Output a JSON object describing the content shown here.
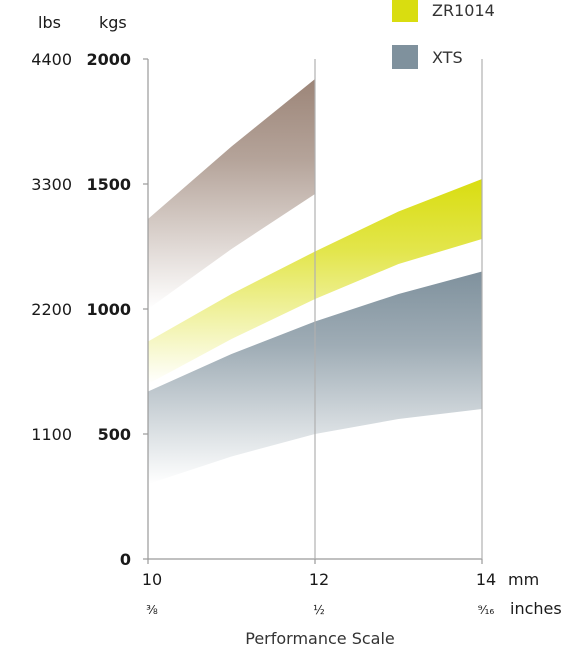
{
  "chart_data": {
    "type": "area",
    "xlabel": "Performance Scale",
    "x_units": {
      "primary": "mm",
      "secondary": "inches"
    },
    "x": [
      10,
      12,
      14
    ],
    "x_tick_labels": [
      "10",
      "12",
      "14"
    ],
    "x_inch_labels": [
      "⅜",
      "½",
      "⁹⁄₁₆"
    ],
    "xlim": [
      10,
      14
    ],
    "y_units": {
      "left": "lbs",
      "right": "kgs"
    },
    "ylim": [
      0,
      2000
    ],
    "y_ticks_kgs": [
      0,
      500,
      1000,
      1500,
      2000
    ],
    "y_tick_labels_kgs": [
      "0",
      "500",
      "1000",
      "1500",
      "2000"
    ],
    "y_tick_labels_lbs": [
      "",
      "1100",
      "2200",
      "3300",
      "4400"
    ],
    "series": [
      {
        "name": "",
        "color": "#9c8578",
        "x": [
          10,
          11,
          12
        ],
        "upper": [
          1360,
          1650,
          1920
        ],
        "lower": [
          1000,
          1240,
          1460
        ]
      },
      {
        "name": "ZR1014",
        "color": "#d9dd10",
        "x": [
          10,
          11,
          12,
          13,
          14
        ],
        "upper": [
          870,
          1060,
          1230,
          1390,
          1520
        ],
        "lower": [
          700,
          880,
          1040,
          1180,
          1280
        ]
      },
      {
        "name": "XTS",
        "color": "#7f919d",
        "x": [
          10,
          11,
          12,
          13,
          14
        ],
        "upper": [
          670,
          820,
          950,
          1060,
          1150
        ],
        "lower": [
          300,
          410,
          500,
          560,
          600
        ]
      }
    ],
    "legend": {
      "placement": "top-right",
      "entries": [
        {
          "label": "ZR1014",
          "color": "#d9dd10"
        },
        {
          "label": "XTS",
          "color": "#7f919d"
        }
      ]
    },
    "gridlines": {
      "vertical_at_x": [
        12,
        14
      ],
      "horizontal": false
    }
  }
}
